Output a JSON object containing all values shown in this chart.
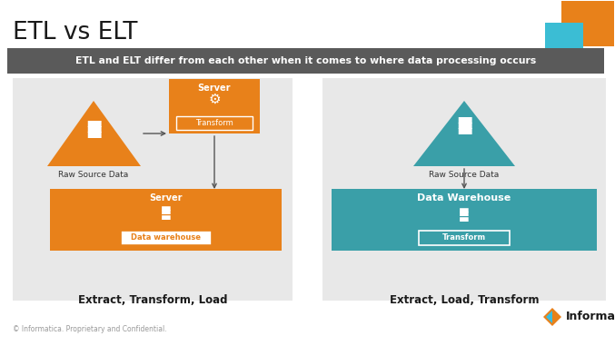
{
  "title": "ETL vs ELT",
  "subtitle": "ETL and ELT differ from each other when it comes to where data processing occurs",
  "bg_color": "#ffffff",
  "subtitle_bg": "#5a5a5a",
  "subtitle_text_color": "#ffffff",
  "panel_bg": "#e8e8e8",
  "orange": "#E8811A",
  "teal": "#3A9FA8",
  "white": "#ffffff",
  "dark_text": "#333333",
  "arrow_color": "#555555",
  "etl_label": "Extract, Transform, Load",
  "elt_label": "Extract, Load, Transform",
  "etl_server_top": "Server",
  "etl_transform": "Transform",
  "etl_source": "Raw Source Data",
  "etl_server_bottom": "Server",
  "etl_warehouse": "Data warehouse",
  "elt_source": "Raw Source Data",
  "elt_warehouse": "Data Warehouse",
  "elt_transform": "Transform",
  "footer": "© Informatica. Proprietary and Confidential.",
  "informatica_text": "Informatica",
  "corner_orange": "#E8811A",
  "corner_teal": "#3BBDD4"
}
